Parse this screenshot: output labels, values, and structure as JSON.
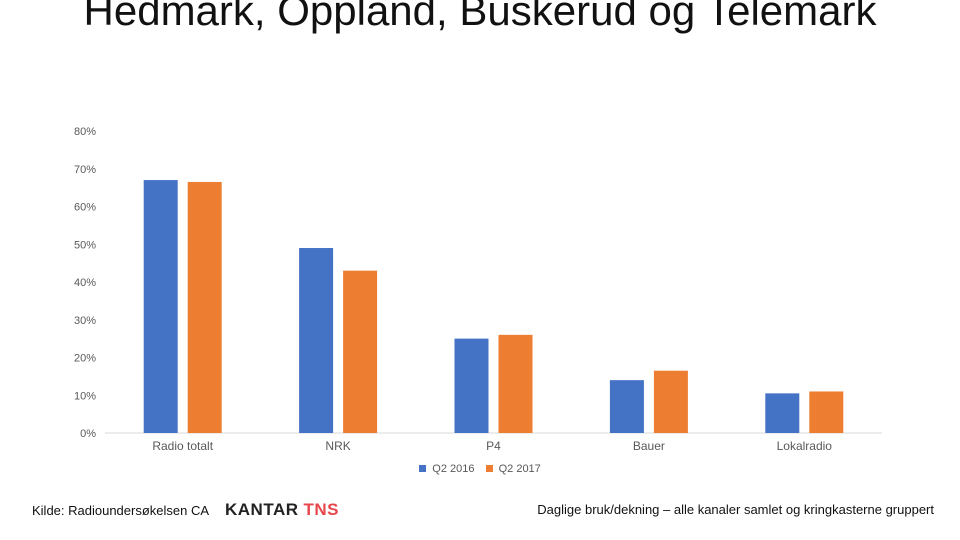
{
  "slide": {
    "title": "Hedmark, Oppland, Buskerud og Telemark",
    "source_text": "Kilde: Radioundersøkelsen CA",
    "logo_kantar": "KANTAR",
    "logo_tns": "TNS",
    "note": "Daglige bruk/dekning – alle kanaler samlet og kringkasterne gruppert"
  },
  "chart_data": {
    "type": "bar",
    "title": "Hedmark, Oppland, Buskerud og Telemark",
    "categories": [
      "Radio totalt",
      "NRK",
      "P4",
      "Bauer",
      "Lokalradio"
    ],
    "series": [
      {
        "name": "Q2 2016",
        "color": "#4472c4",
        "values": [
          67,
          49,
          25,
          14,
          10.5
        ]
      },
      {
        "name": "Q2 2017",
        "color": "#ed7d31",
        "values": [
          66.5,
          43,
          26,
          16.5,
          11
        ]
      }
    ],
    "ylim": [
      0,
      80
    ],
    "yticks": [
      0,
      10,
      20,
      30,
      40,
      50,
      60,
      70,
      80
    ],
    "ytick_labels": [
      "0%",
      "10%",
      "20%",
      "30%",
      "40%",
      "50%",
      "60%",
      "70%",
      "80%"
    ],
    "grid": false,
    "legend": "bottom"
  }
}
